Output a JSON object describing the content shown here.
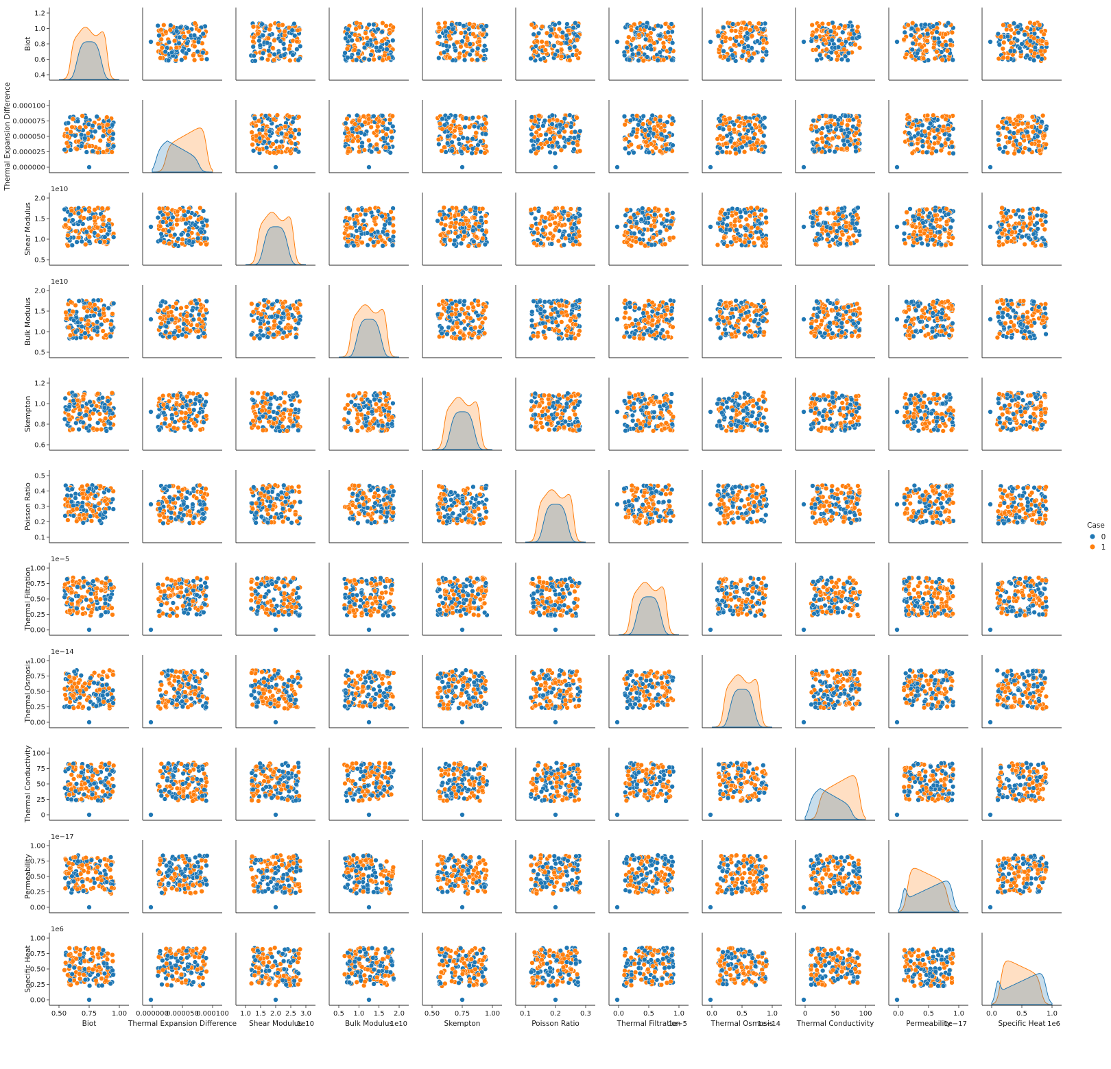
{
  "chart_data": {
    "type": "scatter",
    "variables": [
      {
        "name": "Biot",
        "range": [
          0.55,
          0.95
        ],
        "ticks": [
          "0.4",
          "0.6",
          "0.8",
          "1.0",
          "1.2"
        ],
        "xticks": [
          "0.50",
          "0.75",
          "1.00"
        ],
        "offset": "",
        "zero_outlier": false,
        "kde": "flat"
      },
      {
        "name": "Thermal Expansion Difference",
        "range": [
          1e-05,
          0.0001
        ],
        "ticks": [
          "0.000000",
          "0.000025",
          "0.000050",
          "0.000075",
          "0.000100"
        ],
        "xticks": [
          "0.000000",
          "0.000050",
          "0.000100"
        ],
        "offset": "",
        "zero_outlier": true,
        "kde": "opposed"
      },
      {
        "name": "Shear Modulus",
        "range": [
          12000000000.0,
          20000000000.0
        ],
        "ticks": [
          "0.5",
          "1.0",
          "1.5",
          "2.0"
        ],
        "xticks": [
          "1.0",
          "1.5",
          "2.0",
          "2.5",
          "3.0"
        ],
        "offset": "1e10",
        "zero_outlier": false,
        "kde": "flat"
      },
      {
        "name": "Bulk Modulus",
        "range": [
          8000000000.0,
          16000000000.0
        ],
        "ticks": [
          "0.5",
          "1.0",
          "1.5",
          "2.0"
        ],
        "xticks": [
          "0.5",
          "1.0",
          "1.5",
          "2.0"
        ],
        "offset": "1e10",
        "zero_outlier": false,
        "kde": "flat"
      },
      {
        "name": "Skempton",
        "range": [
          0.6,
          0.98
        ],
        "ticks": [
          "0.6",
          "0.8",
          "1.0",
          "1.2"
        ],
        "xticks": [
          "0.50",
          "0.75",
          "1.00"
        ],
        "offset": "",
        "zero_outlier": false,
        "kde": "flat"
      },
      {
        "name": "Poisson Ratio",
        "range": [
          0.22,
          0.32
        ],
        "ticks": [
          "0.1",
          "0.2",
          "0.3",
          "0.4",
          "0.5"
        ],
        "xticks": [
          "0.1",
          "0.2",
          "0.3"
        ],
        "offset": "",
        "zero_outlier": false,
        "kde": "flat"
      },
      {
        "name": "Thermal Filtration",
        "range": [
          1e-06,
          1e-05
        ],
        "ticks": [
          "0.00",
          "0.25",
          "0.50",
          "0.75",
          "1.00"
        ],
        "xticks": [
          "0.0",
          "0.5",
          "1.0"
        ],
        "offset": "1e−5",
        "zero_outlier": true,
        "kde": "flat"
      },
      {
        "name": "Thermal Osmosis",
        "range": [
          1e-15,
          1e-14
        ],
        "ticks": [
          "0.00",
          "0.25",
          "0.50",
          "0.75",
          "1.00"
        ],
        "xticks": [
          "0.0",
          "0.5",
          "1.0"
        ],
        "offset": "1e−14",
        "zero_outlier": true,
        "kde": "flat"
      },
      {
        "name": "Thermal Conductivity",
        "range": [
          10,
          100
        ],
        "ticks": [
          "0",
          "25",
          "50",
          "75",
          "100"
        ],
        "xticks": [
          "0",
          "50",
          "100"
        ],
        "offset": "",
        "zero_outlier": true,
        "kde": "opposed"
      },
      {
        "name": "Permeability",
        "range": [
          1e-18,
          1e-17
        ],
        "ticks": [
          "0.00",
          "0.25",
          "0.50",
          "0.75",
          "1.00"
        ],
        "xticks": [
          "0.0",
          "0.5",
          "1.0"
        ],
        "offset": "1e−17",
        "zero_outlier": true,
        "kde": "reversed"
      },
      {
        "name": "Specific Heat",
        "range": [
          100000.0,
          1000000.0
        ],
        "ticks": [
          "0.00",
          "0.25",
          "0.50",
          "0.75",
          "1.00"
        ],
        "xticks": [
          "0.0",
          "0.5",
          "1.0"
        ],
        "offset": "1e6",
        "zero_outlier": true,
        "kde": "reversed"
      }
    ],
    "hue": {
      "name": "Case",
      "levels": [
        "0",
        "1"
      ],
      "colors": [
        "#1f77b4",
        "#ff7f0e"
      ]
    },
    "diagonal": "kde",
    "off_diagonal": "scatter",
    "grid": false,
    "legend_position": "right"
  }
}
